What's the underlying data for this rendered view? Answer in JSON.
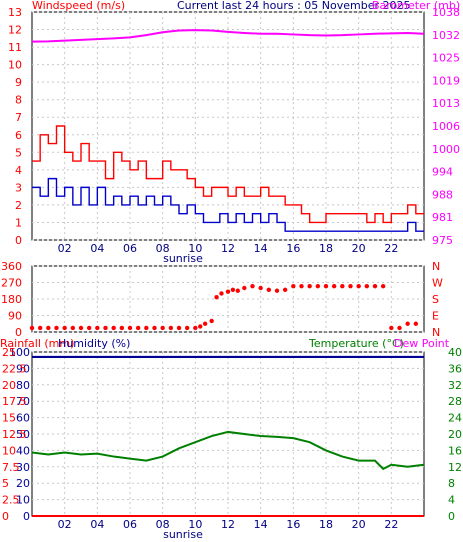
{
  "header": {
    "title": "Current last 24 hours : 05 November 2025",
    "left_label": "Windspeed (m/s)",
    "right_label": "Barometer (mb)"
  },
  "colors": {
    "gust": "#ff0000",
    "wind": "#0000cc",
    "barometer": "#ff00ff",
    "direction": "#ff0000",
    "rain": "#ff0000",
    "humidity": "#000099",
    "temperature": "#008000",
    "dewpoint": "#ff00ff"
  },
  "x_ticks": [
    "02",
    "04",
    "06",
    "08",
    "10",
    "12",
    "14",
    "16",
    "18",
    "20",
    "22"
  ],
  "sunrise_label": "sunrise",
  "chart_data": [
    {
      "type": "line",
      "title": "Windspeed (m/s) / Barometer (mb)",
      "x_unit": "hours of last 24h",
      "xlim": [
        0,
        24
      ],
      "ylim_left": [
        0,
        13
      ],
      "ylim_right": [
        975,
        1038
      ],
      "left_ticks": [
        "0",
        "1",
        "2",
        "3",
        "4",
        "5",
        "6",
        "7",
        "8",
        "9",
        "10",
        "11",
        "12",
        "13"
      ],
      "right_ticks": [
        "975",
        "981",
        "988",
        "994",
        "1000",
        "1006",
        "1013",
        "1019",
        "1025",
        "1032",
        "1038"
      ],
      "series": [
        {
          "name": "Gust",
          "axis": "left",
          "x": [
            0,
            0.5,
            1,
            1.5,
            2,
            2.5,
            3,
            3.5,
            4,
            4.5,
            5,
            5.5,
            6,
            6.5,
            7,
            7.5,
            8,
            8.5,
            9,
            9.5,
            10,
            10.5,
            11,
            11.5,
            12,
            12.5,
            13,
            13.5,
            14,
            14.5,
            15,
            15.5,
            16,
            16.5,
            17,
            17.5,
            18,
            18.5,
            19,
            19.5,
            20,
            20.5,
            21,
            21.5,
            22,
            22.5,
            23,
            23.5
          ],
          "values": [
            4.5,
            6,
            5.5,
            6.5,
            5,
            4.5,
            5.5,
            4.5,
            4.5,
            3.5,
            5,
            4.5,
            4,
            4.5,
            3.5,
            3.5,
            4.5,
            4,
            4,
            3.5,
            3,
            2.5,
            3,
            3,
            2.5,
            3,
            2.5,
            2.5,
            3,
            2.5,
            2.5,
            2,
            2,
            1.5,
            1,
            1,
            1.5,
            1.5,
            1.5,
            1.5,
            1.5,
            1,
            1.5,
            1,
            1.5,
            1.5,
            2,
            1.5
          ]
        },
        {
          "name": "Wind",
          "axis": "left",
          "x": [
            0,
            0.5,
            1,
            1.5,
            2,
            2.5,
            3,
            3.5,
            4,
            4.5,
            5,
            5.5,
            6,
            6.5,
            7,
            7.5,
            8,
            8.5,
            9,
            9.5,
            10,
            10.5,
            11,
            11.5,
            12,
            12.5,
            13,
            13.5,
            14,
            14.5,
            15,
            15.5,
            16,
            16.5,
            17,
            17.5,
            18,
            18.5,
            19,
            19.5,
            20,
            20.5,
            21,
            21.5,
            22,
            22.5,
            23,
            23.5
          ],
          "values": [
            3,
            2.5,
            3.5,
            2.5,
            3,
            2,
            3,
            2,
            3,
            2,
            2.5,
            2,
            2.5,
            2,
            2.5,
            2,
            2.5,
            2,
            1.5,
            2,
            1.5,
            1,
            1,
            1.5,
            1,
            1.5,
            1,
            1.5,
            1,
            1.5,
            1,
            0.5,
            0.5,
            0.5,
            0.5,
            0.5,
            0.5,
            0.5,
            0.5,
            0.5,
            0.5,
            0.5,
            0.5,
            0.5,
            0.5,
            0.5,
            1,
            0.5
          ]
        },
        {
          "name": "Barometer",
          "axis": "right",
          "x": [
            0,
            1,
            2,
            3,
            4,
            5,
            6,
            7,
            8,
            9,
            10,
            11,
            12,
            13,
            14,
            15,
            16,
            17,
            18,
            19,
            20,
            21,
            22,
            23,
            24
          ],
          "values": [
            1029.8,
            1029.9,
            1030.1,
            1030.3,
            1030.5,
            1030.7,
            1031.0,
            1031.6,
            1032.4,
            1032.9,
            1033.0,
            1032.9,
            1032.5,
            1032.2,
            1032.0,
            1032.0,
            1031.8,
            1031.6,
            1031.5,
            1031.6,
            1031.8,
            1032.0,
            1032.1,
            1032.2,
            1032.0
          ]
        }
      ]
    },
    {
      "type": "scatter",
      "title": "Wind Direction",
      "xlim": [
        0,
        24
      ],
      "ylim": [
        0,
        360
      ],
      "left_ticks": [
        "0",
        "90",
        "180",
        "270",
        "360"
      ],
      "compass_ticks": [
        "N",
        "E",
        "S",
        "W",
        "N"
      ],
      "series": [
        {
          "name": "Direction",
          "x": [
            0,
            0.5,
            1,
            1.5,
            2,
            2.5,
            3,
            3.5,
            4,
            4.5,
            5,
            5.5,
            6,
            6.5,
            7,
            7.5,
            8,
            8.5,
            9,
            9.5,
            10,
            10.3,
            10.6,
            11,
            11.3,
            11.6,
            12,
            12.3,
            12.6,
            13,
            13.5,
            14,
            14.5,
            15,
            15.5,
            16,
            16.5,
            17,
            17.5,
            18,
            18.5,
            19,
            19.5,
            20,
            20.5,
            21,
            21.5,
            22,
            22.5,
            23,
            23.5
          ],
          "values": [
            22,
            22,
            22,
            22,
            22,
            22,
            22,
            22,
            22,
            22,
            22,
            22,
            22,
            22,
            22,
            22,
            22,
            22,
            22,
            22,
            22,
            30,
            45,
            60,
            190,
            210,
            220,
            230,
            225,
            240,
            250,
            240,
            230,
            225,
            230,
            250,
            250,
            250,
            250,
            250,
            250,
            250,
            250,
            250,
            250,
            250,
            250,
            22,
            22,
            45,
            45
          ]
        }
      ]
    },
    {
      "type": "line",
      "title": "Rainfall / Humidity / Temperature / Dew Point",
      "legend": [
        "Rainfall (mm)",
        "Humidity (%)",
        "Temperature (°C)",
        "Dew Point"
      ],
      "xlim": [
        0,
        24
      ],
      "ylim_left": [
        0,
        100
      ],
      "ylim_right": [
        0,
        40
      ],
      "left_ticks": [
        "0",
        "10",
        "20",
        "30",
        "40",
        "50",
        "60",
        "70",
        "80",
        "90",
        "100"
      ],
      "rain_ticks": [
        "0",
        "2.5",
        "5",
        "7.5",
        "10",
        "12.5",
        "15",
        "17.5",
        "20",
        "22.5",
        "25"
      ],
      "right_ticks": [
        "0",
        "4",
        "8",
        "12",
        "16",
        "20",
        "24",
        "28",
        "32",
        "36",
        "40"
      ],
      "series": [
        {
          "name": "Humidity (%)",
          "axis": "left",
          "x": [
            0,
            24
          ],
          "values": [
            97,
            97
          ]
        },
        {
          "name": "Temperature (°C)",
          "axis": "right",
          "x": [
            0,
            1,
            2,
            3,
            4,
            5,
            6,
            7,
            8,
            9,
            10,
            11,
            12,
            13,
            14,
            15,
            16,
            17,
            18,
            19,
            20,
            21,
            21.5,
            22,
            23,
            24
          ],
          "values": [
            15.5,
            15.0,
            15.5,
            15.0,
            15.2,
            14.5,
            14.0,
            13.5,
            14.5,
            16.5,
            18.0,
            19.5,
            20.5,
            20.0,
            19.5,
            19.3,
            19.0,
            18.0,
            16.0,
            14.5,
            13.5,
            13.5,
            11.5,
            12.5,
            12.0,
            12.5
          ]
        },
        {
          "name": "Rainfall (mm)",
          "axis": "rain",
          "x": [
            0,
            24
          ],
          "values": [
            0,
            0
          ]
        }
      ]
    }
  ]
}
